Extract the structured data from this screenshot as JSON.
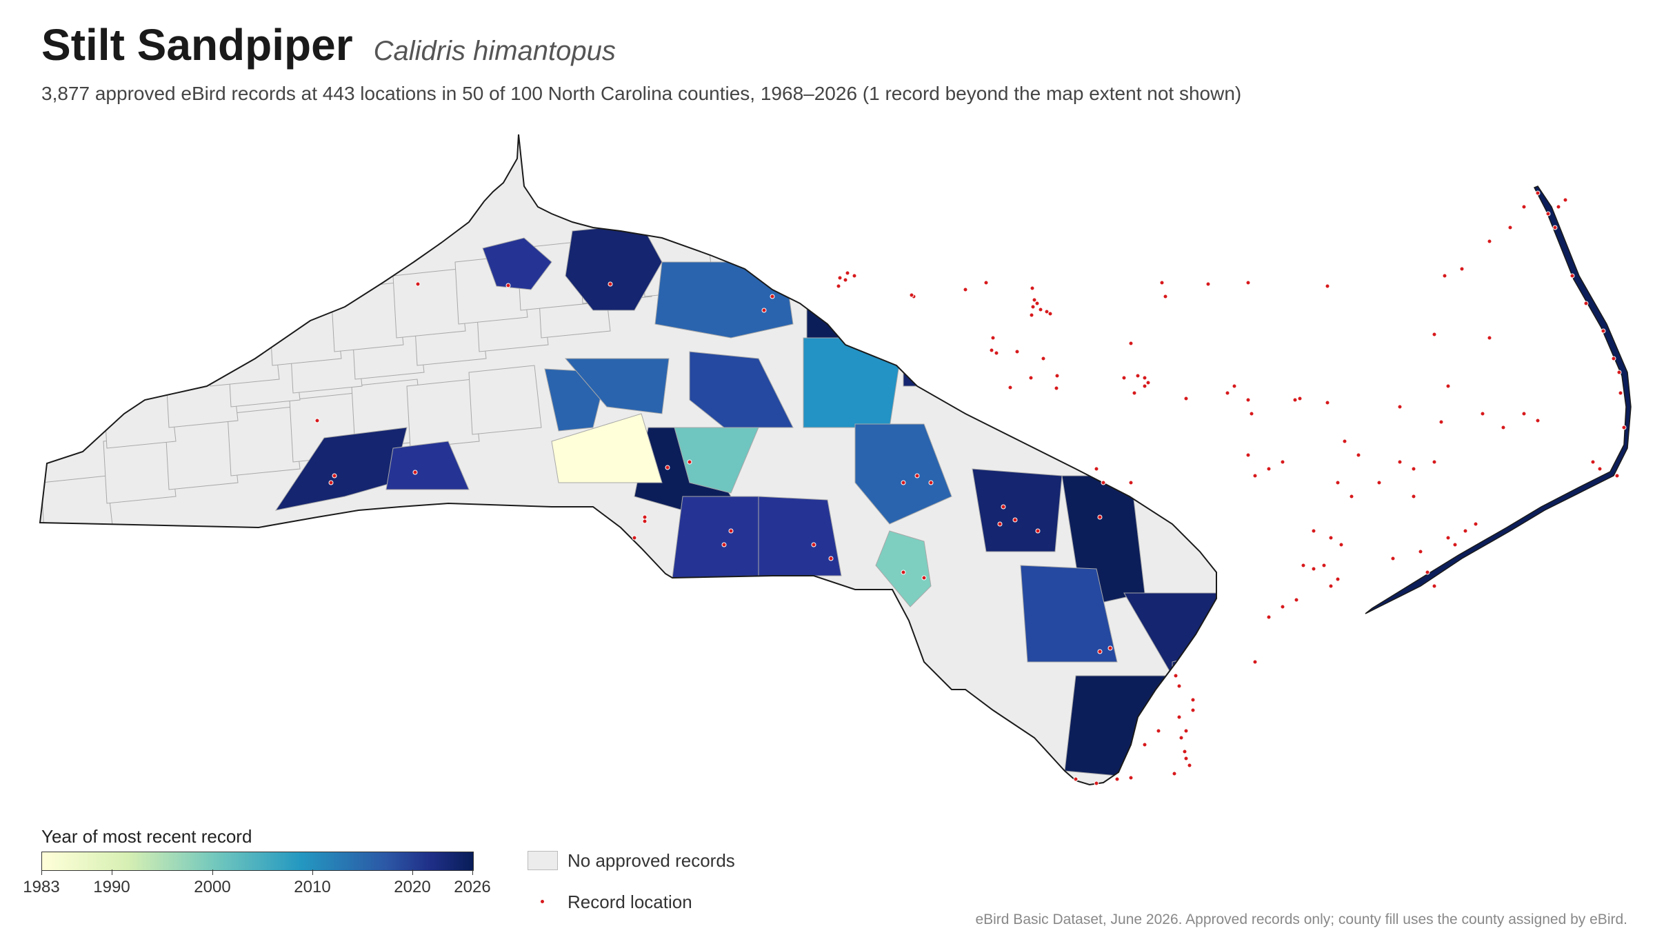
{
  "header": {
    "title": "Stilt Sandpiper",
    "scientific_name": "Calidris himantopus",
    "subtitle": "3,877 approved eBird records at 443 locations in 50 of 100 North Carolina counties, 1968–2026 (1 record beyond the map extent not shown)"
  },
  "legend": {
    "title": "Year of most recent record",
    "ticks": [
      "1983",
      "1990",
      "2000",
      "2010",
      "2020",
      "2026"
    ],
    "tick_values": [
      1983,
      1990,
      2000,
      2010,
      2020,
      2026
    ],
    "no_records_label": "No approved records",
    "record_location_label": "Record location",
    "colors": {
      "no_records": "#ececec",
      "record_dot": "#d7191c",
      "ramp": [
        "#ffffd9",
        "#d6efb3",
        "#73c8bd",
        "#2498c1",
        "#2c57a5",
        "#1f2f88",
        "#081d58"
      ]
    }
  },
  "source_note": "eBird Basic Dataset, June 2026. Approved records only; county fill uses the county assigned by eBird."
}
